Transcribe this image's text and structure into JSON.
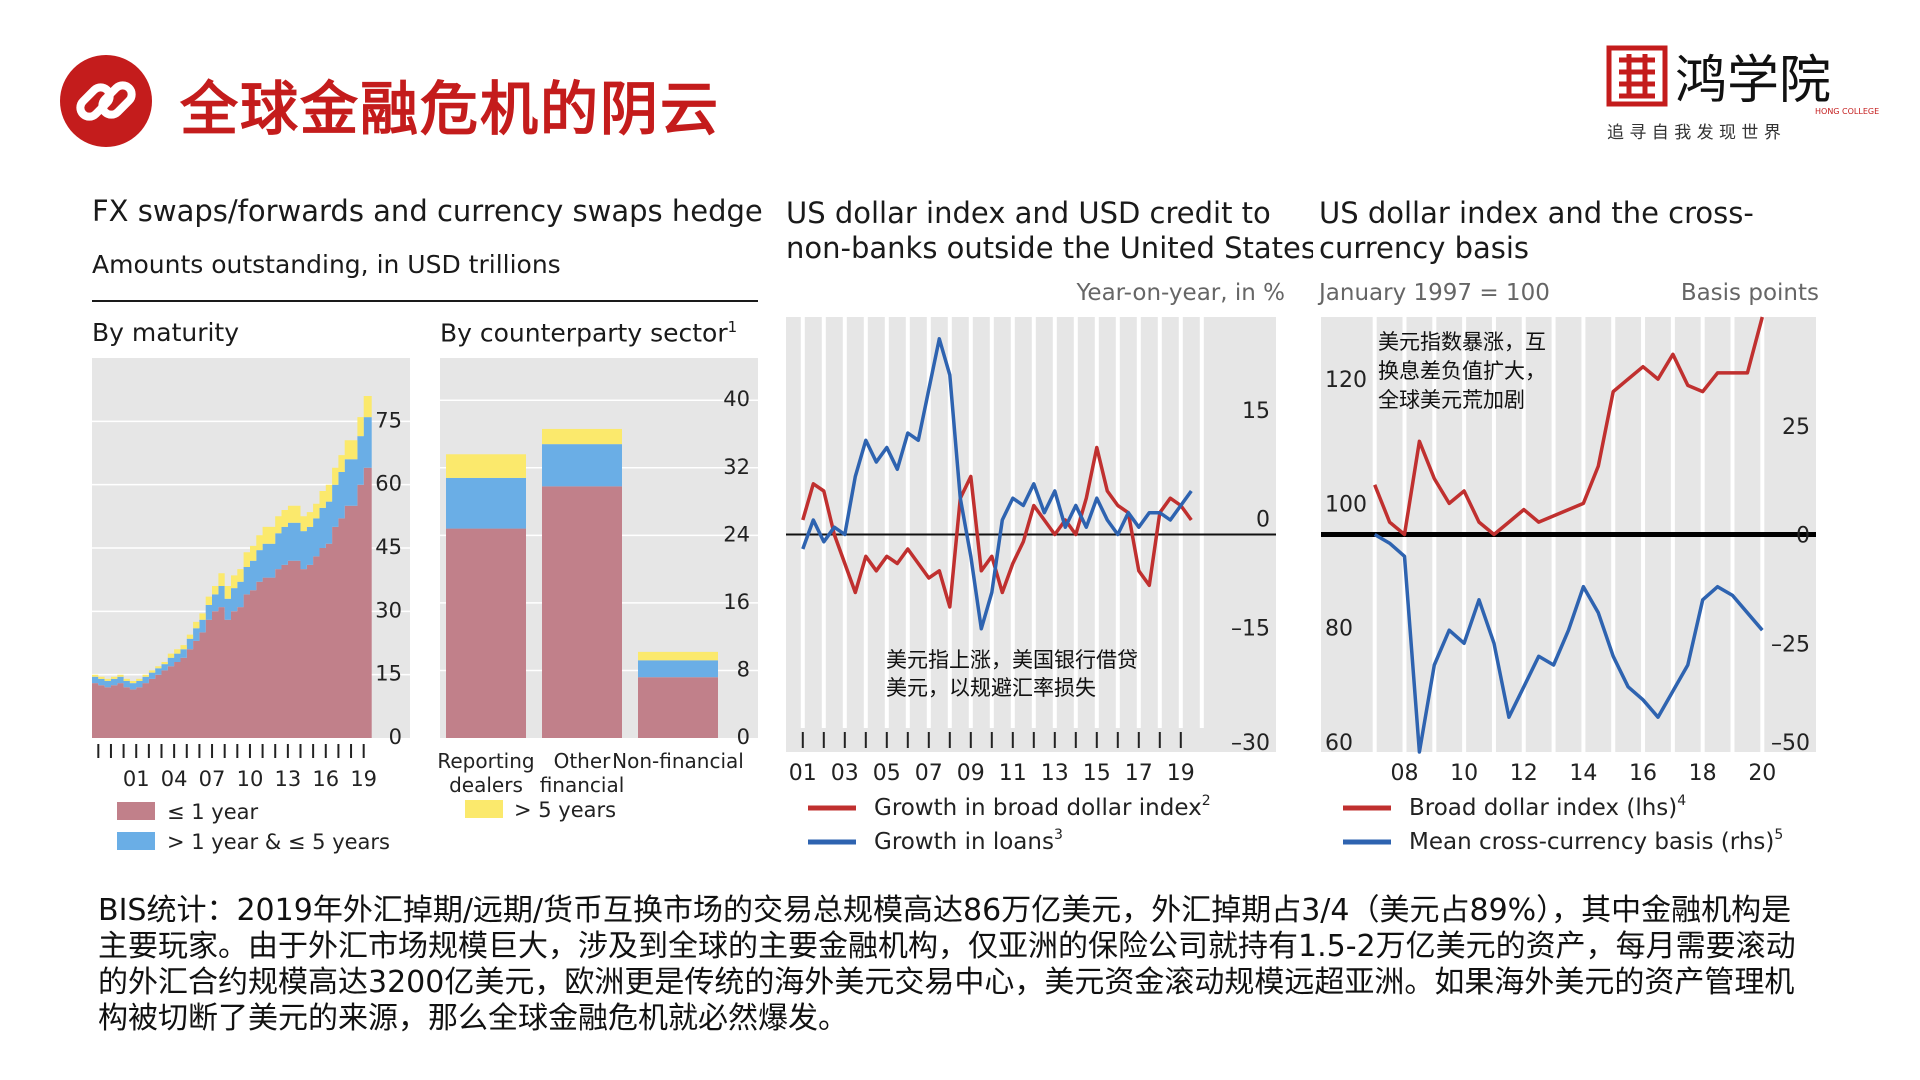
{
  "header": {
    "title": "全球金融危机的阴云",
    "link_icon": "link-icon"
  },
  "logo": {
    "name": "鸿学院",
    "sub": "HONG COLLEGE",
    "slogan": "追 寻 自 我     发 现 世 界",
    "brand_color": "#c41c1c"
  },
  "colors": {
    "pink": "#c1808a",
    "blue": "#6aaee6",
    "yellow": "#fbe96c",
    "red": "#c0302f",
    "line_blue": "#2e63b0",
    "plot_bg": "#e6e6e6",
    "title_red": "#c41c1c"
  },
  "chart_data": [
    {
      "type": "area",
      "panel_title": "FX swaps/forwards and currency swaps hedge",
      "panel_subtitle": "Amounts outstanding, in USD trillions",
      "subtitle": "By maturity",
      "ylim": [
        0,
        90
      ],
      "yticks": [
        "0",
        "15",
        "30",
        "45",
        "60",
        "75"
      ],
      "xtick_labels": [
        "01",
        "04",
        "07",
        "10",
        "13",
        "16",
        "19"
      ],
      "x_years": [
        1998,
        1998.5,
        1999,
        1999.5,
        2000,
        2000.5,
        2001,
        2001.5,
        2002,
        2002.5,
        2003,
        2003.5,
        2004,
        2004.5,
        2005,
        2005.5,
        2006,
        2006.5,
        2007,
        2007.5,
        2008,
        2008.5,
        2009,
        2009.5,
        2010,
        2010.5,
        2011,
        2011.5,
        2012,
        2012.5,
        2013,
        2013.5,
        2014,
        2014.5,
        2015,
        2015.5,
        2016,
        2016.5,
        2017,
        2017.5,
        2018,
        2018.5,
        2019,
        2019.5
      ],
      "series": [
        {
          "name": "≤ 1 year",
          "values": [
            13,
            12.5,
            12,
            12.5,
            13,
            12,
            11.5,
            12,
            13,
            14,
            15,
            16,
            17,
            18,
            19,
            21,
            23,
            25,
            28,
            30,
            31,
            28,
            30,
            31,
            34,
            35,
            37,
            38,
            38,
            40,
            41,
            42,
            42,
            40,
            41,
            43,
            45,
            46,
            50,
            52,
            55,
            55,
            60,
            64
          ]
        },
        {
          "name": "> 1 year & ≤ 5 years",
          "values": [
            1.5,
            1.5,
            1.5,
            1.5,
            1.5,
            1.5,
            1.5,
            1.5,
            1.5,
            1.5,
            1.5,
            1.5,
            2,
            2,
            2,
            2.5,
            3,
            3,
            3.5,
            4,
            5,
            5,
            5.5,
            6,
            6.5,
            7,
            7.5,
            8,
            8,
            8.5,
            9,
            9,
            9,
            9,
            9,
            9,
            9.5,
            10,
            10,
            11,
            11,
            11,
            11.5,
            12
          ]
        },
        {
          "name": "> 5 years",
          "values": [
            0.5,
            0.5,
            0.5,
            0.5,
            0.5,
            0.5,
            0.5,
            0.5,
            0.5,
            0.5,
            0.5,
            0.5,
            1,
            1,
            1,
            1,
            1.5,
            1.5,
            2,
            2,
            3,
            3,
            3,
            3,
            3.5,
            3.5,
            3.5,
            4,
            4,
            4,
            4,
            4,
            4,
            3.5,
            3.5,
            3.5,
            4,
            4,
            4,
            4,
            4.5,
            4.5,
            4.5,
            5
          ]
        }
      ],
      "legend": [
        "≤ 1 year",
        "> 1 year & ≤ 5 years"
      ]
    },
    {
      "type": "bar",
      "subtitle": "By counterparty sector",
      "subtitle_sup": "1",
      "ylim": [
        0,
        45
      ],
      "yticks": [
        "0",
        "8",
        "16",
        "24",
        "32",
        "40"
      ],
      "categories": [
        "Reporting dealers",
        "Other financial",
        "Non-financial"
      ],
      "series": [
        {
          "name": "≤ 1 year",
          "values": [
            24.8,
            29.8,
            7.2
          ]
        },
        {
          "name": "> 1 year & ≤ 5 years",
          "values": [
            6,
            5,
            2
          ]
        },
        {
          "name": "> 5 years",
          "values": [
            2.8,
            1.8,
            1
          ]
        }
      ],
      "legend": [
        "> 5 years"
      ]
    },
    {
      "type": "line",
      "panel_title": "US dollar index and USD credit to non-banks outside the United States",
      "unit_label": "Year-on-year, in %",
      "ylim": [
        -30,
        30
      ],
      "yticks": [
        "–30",
        "–15",
        "0",
        "15"
      ],
      "xtick_labels": [
        "01",
        "03",
        "05",
        "07",
        "09",
        "11",
        "13",
        "15",
        "17",
        "19"
      ],
      "annotation": "美元指上涨，美国银行借贷\n美元，以规避汇率损失",
      "series": [
        {
          "name": "Growth in broad dollar index",
          "sup": "2",
          "x": [
            2001,
            2001.5,
            2002,
            2002.5,
            2003,
            2003.5,
            2004,
            2004.5,
            2005,
            2005.5,
            2006,
            2006.5,
            2007,
            2007.5,
            2008,
            2008.5,
            2009,
            2009.5,
            2010,
            2010.5,
            2011,
            2011.5,
            2012,
            2012.5,
            2013,
            2013.5,
            2014,
            2014.5,
            2015,
            2015.5,
            2016,
            2016.5,
            2017,
            2017.5,
            2018,
            2018.5,
            2019,
            2019.5
          ],
          "values": [
            2,
            7,
            6,
            0,
            -4,
            -8,
            -3,
            -5,
            -3,
            -4,
            -2,
            -4,
            -6,
            -5,
            -10,
            5,
            8,
            -5,
            -3,
            -8,
            -4,
            -1,
            4,
            2,
            0,
            2,
            0,
            5,
            12,
            6,
            4,
            3,
            -5,
            -7,
            3,
            5,
            4,
            2
          ]
        },
        {
          "name": "Growth in loans",
          "sup": "3",
          "x": [
            2001,
            2001.5,
            2002,
            2002.5,
            2003,
            2003.5,
            2004,
            2004.5,
            2005,
            2005.5,
            2006,
            2006.5,
            2007,
            2007.5,
            2008,
            2008.5,
            2009,
            2009.5,
            2010,
            2010.5,
            2011,
            2011.5,
            2012,
            2012.5,
            2013,
            2013.5,
            2014,
            2014.5,
            2015,
            2015.5,
            2016,
            2016.5,
            2017,
            2017.5,
            2018,
            2018.5,
            2019,
            2019.5
          ],
          "values": [
            -2,
            2,
            -1,
            1,
            0,
            8,
            13,
            10,
            12,
            9,
            14,
            13,
            20,
            27,
            22,
            5,
            -3,
            -13,
            -8,
            2,
            5,
            4,
            7,
            3,
            6,
            1,
            4,
            1,
            5,
            2,
            0,
            3,
            1,
            3,
            3,
            2,
            4,
            6
          ]
        }
      ]
    },
    {
      "type": "line",
      "panel_title": "US dollar index and the cross-currency basis",
      "unit_left": "January 1997 = 100",
      "unit_right": "Basis points",
      "ylim_left": [
        60,
        130
      ],
      "yticks_left": [
        "60",
        "80",
        "100",
        "120"
      ],
      "ylim_right": [
        -50,
        50
      ],
      "yticks_right": [
        "–50",
        "–25",
        "0",
        "25"
      ],
      "xtick_labels": [
        "08",
        "10",
        "12",
        "14",
        "16",
        "18",
        "20"
      ],
      "annotation": "美元指数暴涨，互\n换息差负值扩大，\n全球美元荒加剧",
      "series": [
        {
          "name": "Broad dollar index (lhs)",
          "sup": "4",
          "axis": "left",
          "x": [
            2007,
            2007.5,
            2008,
            2008.5,
            2009,
            2009.5,
            2010,
            2010.5,
            2011,
            2011.5,
            2012,
            2012.5,
            2013,
            2013.5,
            2014,
            2014.5,
            2015,
            2015.5,
            2016,
            2016.5,
            2017,
            2017.5,
            2018,
            2018.5,
            2019,
            2019.5,
            2020
          ],
          "values": [
            103,
            97,
            95,
            110,
            104,
            100,
            102,
            97,
            95,
            97,
            99,
            97,
            98,
            99,
            100,
            106,
            118,
            120,
            122,
            120,
            124,
            119,
            118,
            121,
            121,
            121,
            130
          ]
        },
        {
          "name": "Mean cross-currency basis (rhs)",
          "sup": "5",
          "axis": "right",
          "x": [
            2007,
            2007.5,
            2008,
            2008.5,
            2009,
            2009.5,
            2010,
            2010.5,
            2011,
            2011.5,
            2012,
            2012.5,
            2013,
            2013.5,
            2014,
            2014.5,
            2015,
            2015.5,
            2016,
            2016.5,
            2017,
            2017.5,
            2018,
            2018.5,
            2019,
            2019.5,
            2020
          ],
          "values": [
            0,
            -2,
            -5,
            -50,
            -30,
            -22,
            -25,
            -15,
            -25,
            -42,
            -35,
            -28,
            -30,
            -22,
            -12,
            -18,
            -28,
            -35,
            -38,
            -42,
            -36,
            -30,
            -15,
            -12,
            -14,
            -18,
            -22
          ]
        }
      ]
    }
  ],
  "body_text": "BIS统计：2019年外汇掉期/远期/货币互换市场的交易总规模高达86万亿美元，外汇掉期占3/4（美元占89%），其中金融机构是主要玩家。由于外汇市场规模巨大，涉及到全球的主要金融机构，仅亚洲的保险公司就持有1.5-2万亿美元的资产，每月需要滚动的外汇合约规模高达3200亿美元，欧洲更是传统的海外美元交易中心，美元资金滚动规模远超亚洲。如果海外美元的资产管理机构被切断了美元的来源，那么全球金融危机就必然爆发。"
}
